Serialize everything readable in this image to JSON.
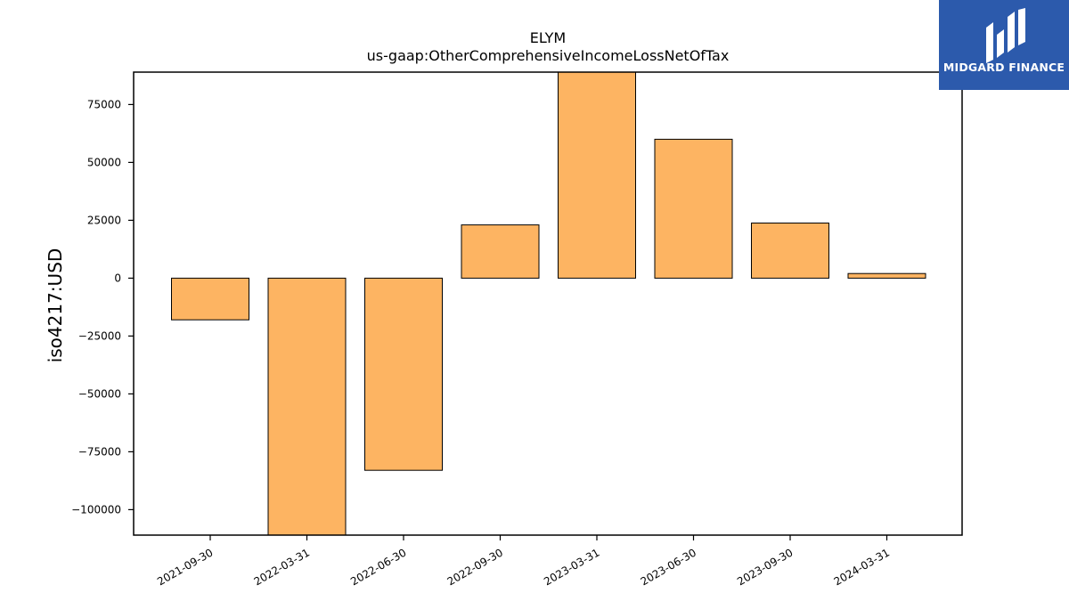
{
  "logo": {
    "text": "MIDGARD FINANCE",
    "background": "#2c5aac",
    "text_color": "#ffffff",
    "icon": "midgard-logo-icon"
  },
  "chart_data": {
    "type": "bar",
    "title": "ELYM",
    "subtitle": "us-gaap:OtherComprehensiveIncomeLossNetOfTax",
    "xlabel": "",
    "ylabel": "iso4217:USD",
    "categories": [
      "2021-09-30",
      "2022-03-31",
      "2022-06-30",
      "2022-09-30",
      "2023-03-31",
      "2023-06-30",
      "2023-09-30",
      "2024-03-31"
    ],
    "values": [
      -18000,
      -111000,
      -83000,
      23000,
      89000,
      60000,
      23800,
      2000
    ],
    "ylim": [
      -111000,
      89000
    ],
    "yticks": [
      -100000,
      -75000,
      -50000,
      -25000,
      0,
      25000,
      50000,
      75000
    ],
    "ytick_labels": [
      "−100000",
      "−75000",
      "−50000",
      "−25000",
      "0",
      "25000",
      "50000",
      "75000"
    ],
    "bar_color": "#fdb462",
    "bar_edge_color": "#000000",
    "grid": false,
    "legend": "none"
  }
}
